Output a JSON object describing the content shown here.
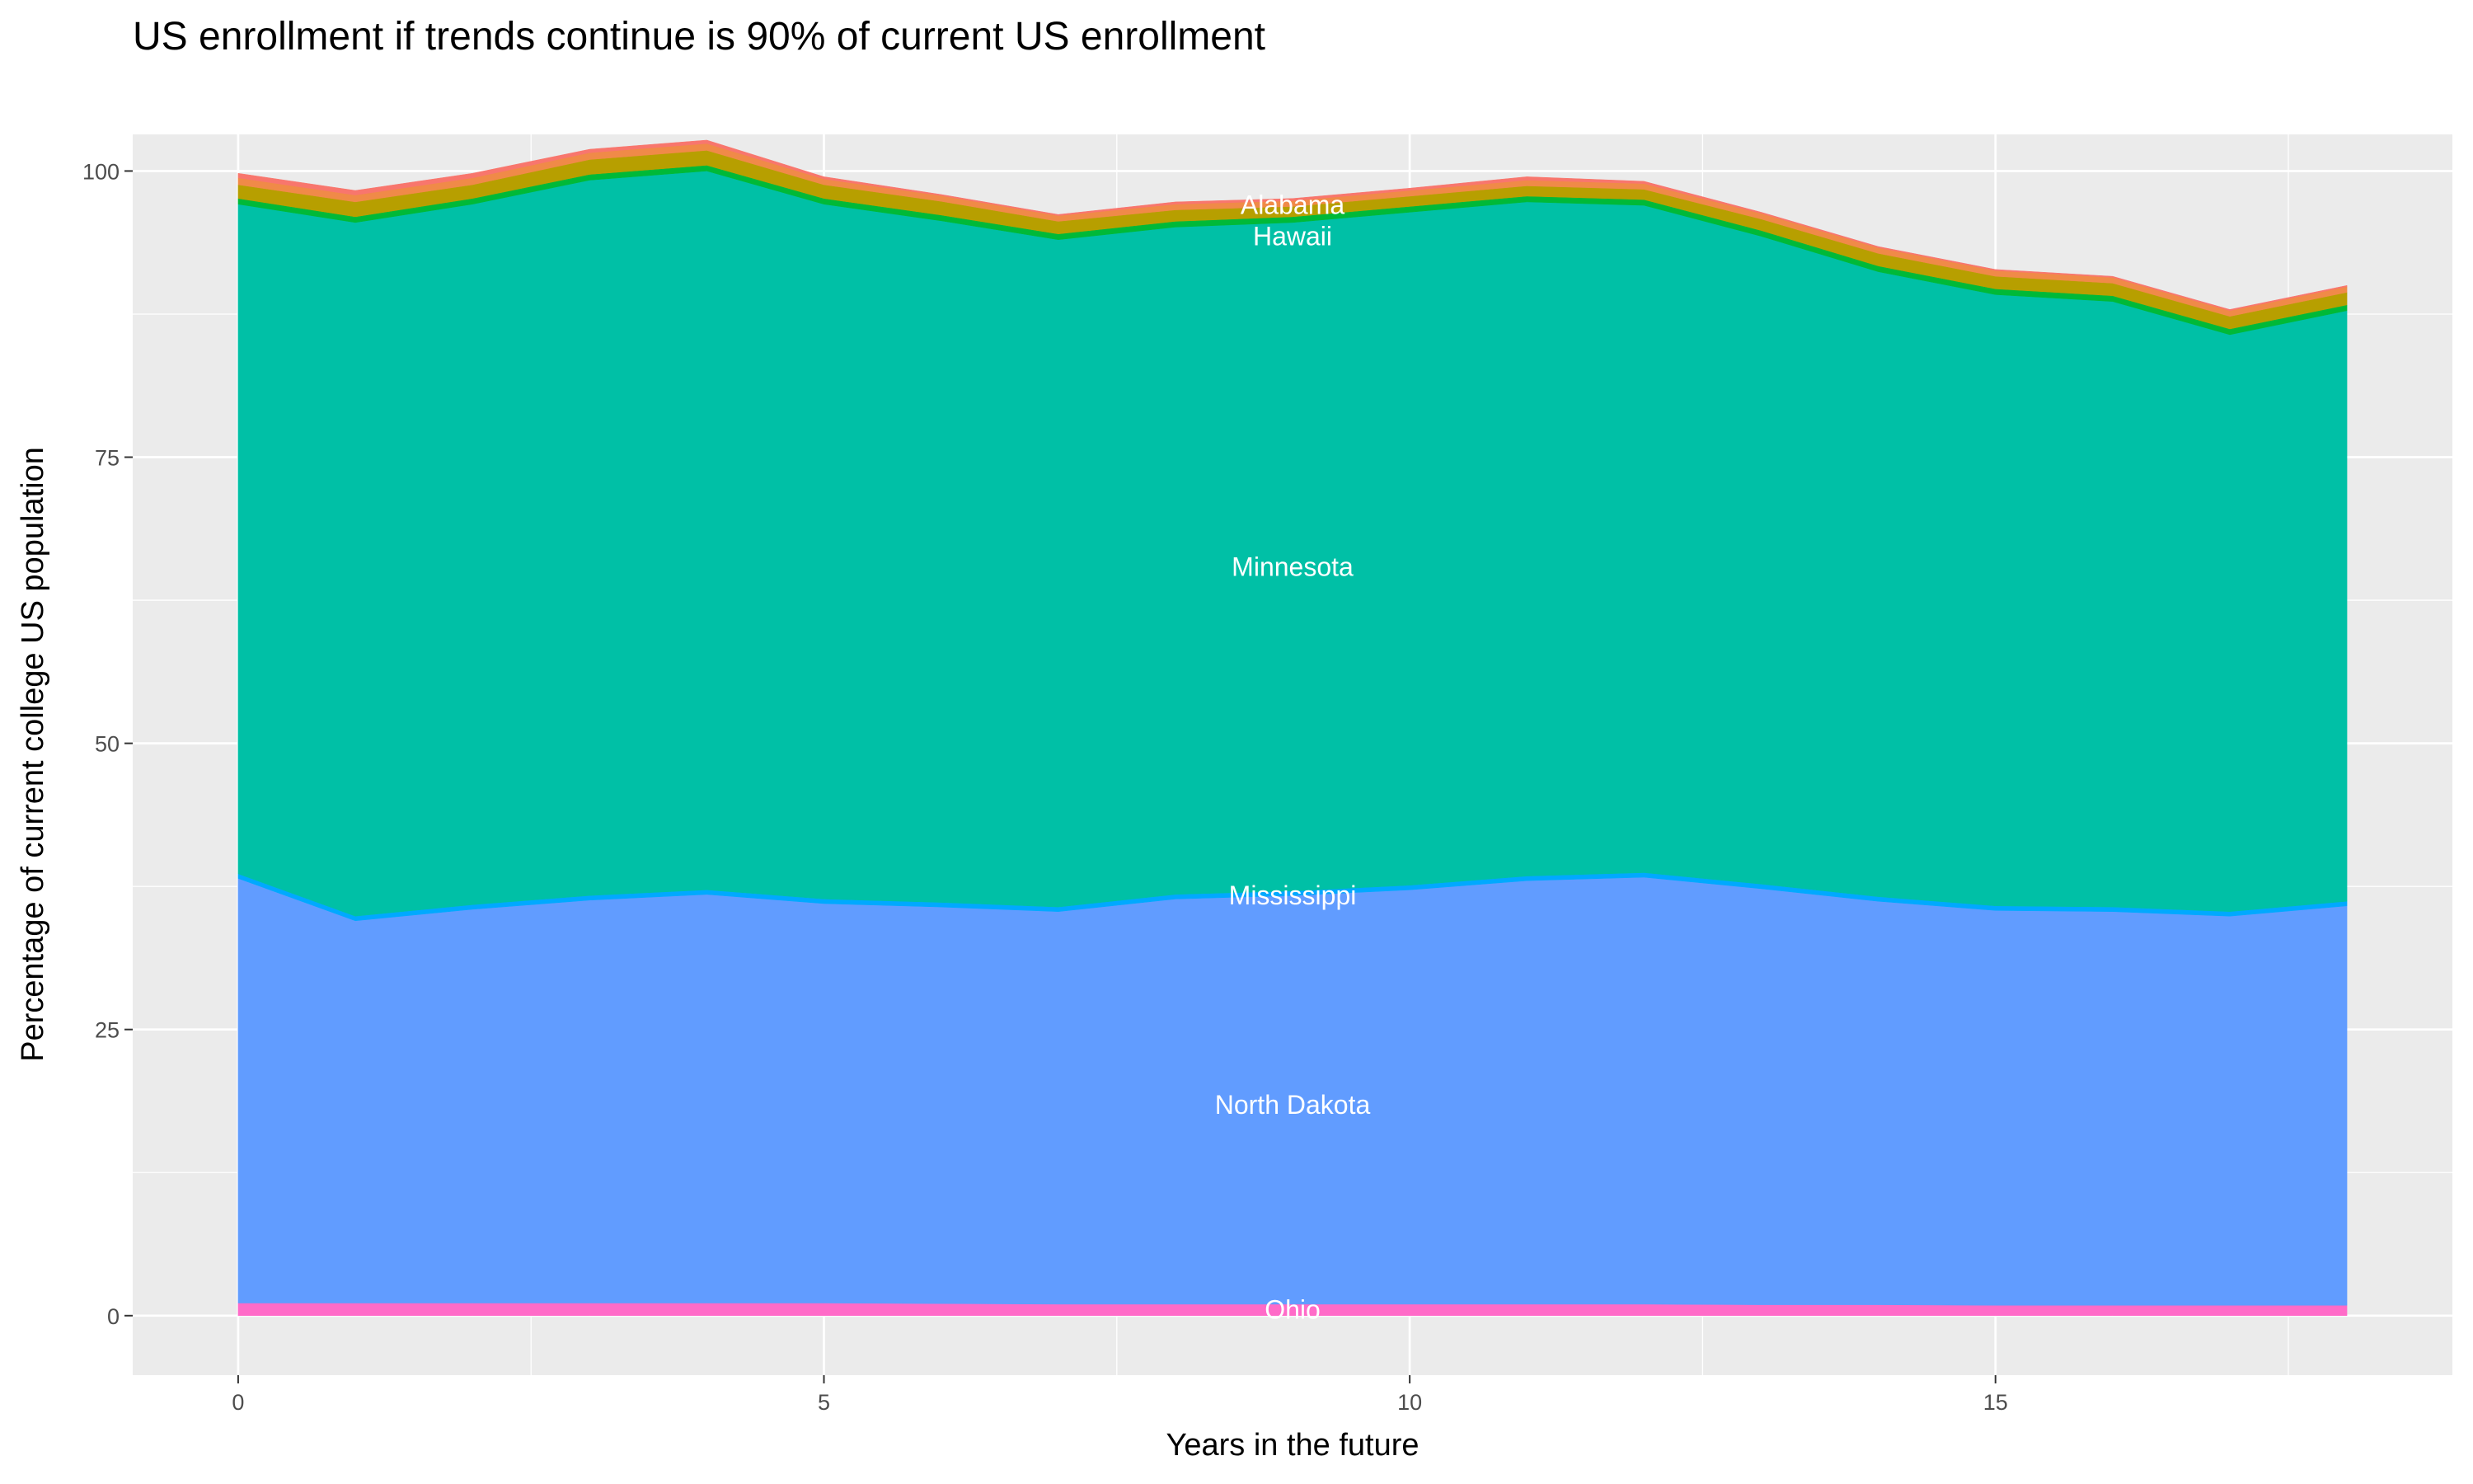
{
  "chart_data": {
    "type": "area",
    "stacked": true,
    "title": "US enrollment if trends continue is 90% of current US enrollment",
    "xlabel": "Years in the future",
    "ylabel": "Percentage of current college US population",
    "xlim": [
      -0.9,
      18.9
    ],
    "ylim": [
      -5.2,
      103.2
    ],
    "x_ticks": [
      0,
      5,
      10,
      15
    ],
    "y_ticks": [
      0,
      25,
      50,
      75,
      100
    ],
    "grid": true,
    "legend": "none",
    "x": [
      0,
      1,
      2,
      3,
      4,
      5,
      6,
      7,
      8,
      9,
      10,
      11,
      12,
      13,
      14,
      15,
      16,
      17,
      18
    ],
    "series": [
      {
        "name": "Ohio",
        "color": "#FF6BC8",
        "label_y": 0.6,
        "values": [
          1.1,
          1.1,
          1.1,
          1.1,
          1.1,
          1.1,
          1.05,
          1.0,
          1.0,
          1.0,
          1.0,
          1.0,
          1.0,
          0.95,
          0.95,
          0.9,
          0.9,
          0.9,
          0.9
        ]
      },
      {
        "name": "North Dakota",
        "color": "#619CFF",
        "label_y": 18.5,
        "values": [
          37.1,
          33.4,
          34.4,
          35.2,
          35.7,
          34.9,
          34.65,
          34.3,
          35.4,
          35.7,
          36.2,
          37.0,
          37.3,
          36.35,
          35.25,
          34.5,
          34.4,
          34.0,
          34.9
        ]
      },
      {
        "name": "Mississippi",
        "color": "#00A9FF",
        "label_y": 36.8,
        "values": [
          0.4,
          0.4,
          0.4,
          0.4,
          0.4,
          0.4,
          0.4,
          0.4,
          0.4,
          0.4,
          0.4,
          0.4,
          0.4,
          0.4,
          0.4,
          0.4,
          0.4,
          0.4,
          0.4
        ]
      },
      {
        "name": "Minnesota",
        "color": "#00C0A6",
        "label_y": 65.5,
        "values": [
          58.5,
          60.6,
          61.2,
          62.5,
          62.8,
          60.7,
          59.55,
          58.3,
          58.3,
          58.4,
          58.8,
          58.9,
          58.3,
          56.6,
          54.6,
          53.4,
          52.9,
          50.4,
          51.6
        ]
      },
      {
        "name": "Hawaii",
        "color": "#00B938",
        "label_y": 95.3,
        "values": [
          0.5,
          0.5,
          0.5,
          0.5,
          0.5,
          0.5,
          0.5,
          0.5,
          0.5,
          0.5,
          0.5,
          0.5,
          0.5,
          0.5,
          0.5,
          0.5,
          0.5,
          0.5,
          0.5
        ]
      },
      {
        "color": "#B79F00",
        "values": [
          1.2,
          1.3,
          1.2,
          1.3,
          1.3,
          1.2,
          1.2,
          1.1,
          1.0,
          0.9,
          0.9,
          0.9,
          0.9,
          1.0,
          1.1,
          1.1,
          1.1,
          1.1,
          1.1
        ]
      },
      {
        "color": "#F08A48",
        "values": [
          0.6,
          0.6,
          0.6,
          0.6,
          0.6,
          0.5,
          0.5,
          0.5,
          0.5,
          0.5,
          0.5,
          0.5,
          0.5,
          0.5,
          0.5,
          0.5,
          0.5,
          0.5,
          0.5
        ]
      },
      {
        "name": "Alabama",
        "color": "#F8766D",
        "label_y": 97.1,
        "values": [
          0.4,
          0.4,
          0.4,
          0.3,
          0.3,
          0.2,
          0.1,
          0.1,
          0.2,
          0.2,
          0.2,
          0.3,
          0.2,
          0.1,
          0.1,
          0.1,
          0.1,
          0.1,
          0.1
        ]
      }
    ],
    "label_x": 9
  }
}
